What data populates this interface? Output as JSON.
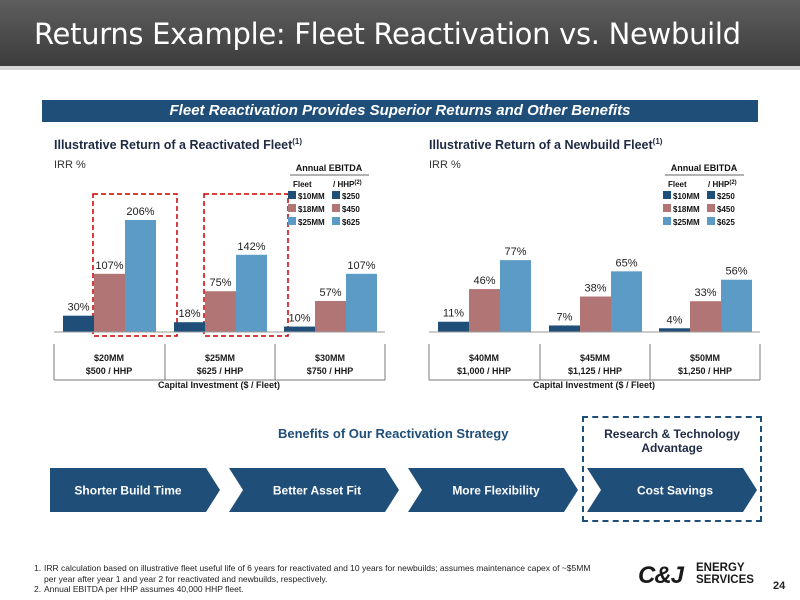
{
  "slide": {
    "title": "Returns Example: Fleet Reactivation vs. Newbuild",
    "banner": "Fleet Reactivation Provides Superior Returns and Other Benefits",
    "page_number": "24"
  },
  "colors": {
    "dark_blue": "#1f4e79",
    "mauve": "#b27575",
    "light_blue": "#5b9bc5",
    "accent_red": "#cc0000",
    "navy": "#1f4e79"
  },
  "chart_data": [
    {
      "type": "bar",
      "title": "Illustrative Return of a Reactivated Fleet",
      "title_sup": "(1)",
      "ylabel": "IRR %",
      "xlabel": "Capital Investment ($ / Fleet)",
      "categories": [
        "$20MM",
        "$25MM",
        "$30MM"
      ],
      "category_sublabels": [
        "$500 / HHP",
        "$625 / HHP",
        "$750 / HHP"
      ],
      "series": [
        {
          "name": "$10MM / $250",
          "values": [
            30,
            18,
            10
          ]
        },
        {
          "name": "$18MM / $450",
          "values": [
            107,
            75,
            57
          ]
        },
        {
          "name": "$25MM / $625",
          "values": [
            206,
            142,
            107
          ]
        }
      ],
      "value_labels": [
        [
          "30%",
          "18%",
          "10%"
        ],
        [
          "107%",
          "75%",
          "57%"
        ],
        [
          "206%",
          "142%",
          "107%"
        ]
      ],
      "highlighted_categories": [
        "$20MM",
        "$25MM"
      ],
      "legend": {
        "title": "Annual EBITDA",
        "col1_header": "Fleet",
        "col2_header": "/ HHP",
        "col2_sup": "(2)",
        "rows": [
          [
            "$10MM",
            "$250"
          ],
          [
            "$18MM",
            "$450"
          ],
          [
            "$25MM",
            "$625"
          ]
        ]
      },
      "legend_position": "top-right",
      "ylim": [
        0,
        206
      ]
    },
    {
      "type": "bar",
      "title": "Illustrative Return of a Newbuild Fleet",
      "title_sup": "(1)",
      "ylabel": "IRR %",
      "xlabel": "Capital Investment ($ / Fleet)",
      "categories": [
        "$40MM",
        "$45MM",
        "$50MM"
      ],
      "category_sublabels": [
        "$1,000 / HHP",
        "$1,125 / HHP",
        "$1,250 / HHP"
      ],
      "series": [
        {
          "name": "$10MM / $250",
          "values": [
            11,
            7,
            4
          ]
        },
        {
          "name": "$18MM / $450",
          "values": [
            46,
            38,
            33
          ]
        },
        {
          "name": "$25MM / $625",
          "values": [
            77,
            65,
            56
          ]
        }
      ],
      "value_labels": [
        [
          "11%",
          "7%",
          "4%"
        ],
        [
          "46%",
          "38%",
          "33%"
        ],
        [
          "77%",
          "65%",
          "56%"
        ]
      ],
      "legend": {
        "title": "Annual EBITDA",
        "col1_header": "Fleet",
        "col2_header": "/ HHP",
        "col2_sup": "(2)",
        "rows": [
          [
            "$10MM",
            "$250"
          ],
          [
            "$18MM",
            "$450"
          ],
          [
            "$25MM",
            "$625"
          ]
        ]
      },
      "legend_position": "top-right",
      "ylim": [
        0,
        120
      ]
    }
  ],
  "benefits": {
    "heading": "Benefits of Our Reactivation Strategy",
    "research_heading_line1": "Research & Technology",
    "research_heading_line2": "Advantage",
    "chevrons": [
      "Shorter Build Time",
      "Better Asset Fit",
      "More Flexibility",
      "Cost Savings"
    ]
  },
  "footnotes": [
    {
      "num": "1.",
      "line1": "IRR calculation based on illustrative fleet useful life of 6 years for reactivated and 10 years for newbuilds; assumes maintenance capex of ~$5MM",
      "line2": "per year after year 1 and year 2 for reactivated and newbuilds, respectively."
    },
    {
      "num": "2.",
      "line1": "Annual EBITDA per HHP assumes 40,000 HHP fleet.",
      "line2": ""
    }
  ],
  "logo": {
    "mark": "C&J",
    "line1": "ENERGY",
    "line2": "SERVICES"
  }
}
